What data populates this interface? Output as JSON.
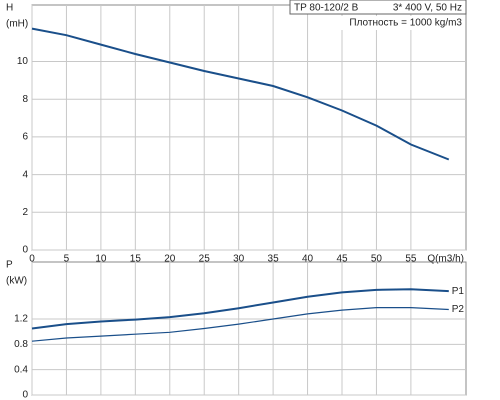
{
  "chart_data": [
    {
      "type": "line",
      "header": [
        "TP 80-120/2 B",
        "3* 400 V, 50 Hz"
      ],
      "note": "Плотность = 1000 kg/m3",
      "y_label": [
        "H",
        "(mH)"
      ],
      "x_label": "Q(m3/h)",
      "xlim": [
        0,
        63
      ],
      "ylim": [
        0,
        13
      ],
      "xticks": [
        0,
        5,
        10,
        15,
        20,
        25,
        30,
        35,
        40,
        45,
        50,
        55
      ],
      "yticks": [
        0,
        2,
        4,
        6,
        8,
        10
      ],
      "grid": true,
      "series": [
        {
          "name": null,
          "color": "#1a4f8a",
          "x": [
            0,
            5,
            10,
            15,
            20,
            25,
            30,
            35,
            40,
            45,
            50,
            55,
            60.5
          ],
          "values": [
            11.75,
            11.4,
            10.9,
            10.4,
            9.95,
            9.5,
            9.1,
            8.7,
            8.1,
            7.4,
            6.6,
            5.6,
            4.8
          ]
        }
      ]
    },
    {
      "type": "line",
      "y_label": [
        "P",
        "(kW)"
      ],
      "xlim": [
        0,
        63
      ],
      "ylim": [
        0,
        2.1
      ],
      "xticks": [
        0,
        5,
        10,
        15,
        20,
        25,
        30,
        35,
        40,
        45,
        50,
        55
      ],
      "yticks": [
        0,
        0.4,
        0.8,
        1.2
      ],
      "grid": true,
      "series": [
        {
          "name": "P1",
          "color": "#1a4f8a",
          "x": [
            0,
            5,
            10,
            15,
            20,
            25,
            30,
            35,
            40,
            45,
            50,
            55,
            60.5
          ],
          "values": [
            1.05,
            1.12,
            1.16,
            1.19,
            1.23,
            1.29,
            1.37,
            1.46,
            1.55,
            1.62,
            1.66,
            1.67,
            1.64
          ]
        },
        {
          "name": "P2",
          "color": "#1a4f8a",
          "x": [
            0,
            5,
            10,
            15,
            20,
            25,
            30,
            35,
            40,
            45,
            50,
            55,
            60.5
          ],
          "values": [
            0.85,
            0.9,
            0.93,
            0.96,
            0.99,
            1.05,
            1.12,
            1.2,
            1.28,
            1.34,
            1.38,
            1.38,
            1.35
          ]
        }
      ]
    }
  ]
}
